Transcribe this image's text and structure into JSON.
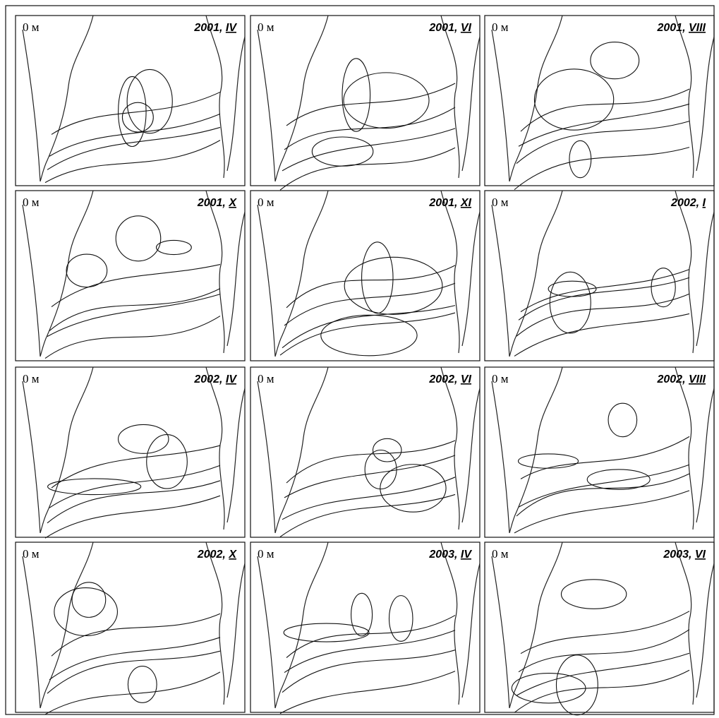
{
  "panels": [
    {
      "depth": "0 м",
      "year": "2001,",
      "month": "IV"
    },
    {
      "depth": "0 м",
      "year": "2001,",
      "month": "VI"
    },
    {
      "depth": "0 м",
      "year": "2001,",
      "month": "VIII"
    },
    {
      "depth": "0 м",
      "year": "2001,",
      "month": "X"
    },
    {
      "depth": "0 м",
      "year": "2001,",
      "month": "XI"
    },
    {
      "depth": "0 м",
      "year": "2002,",
      "month": "I"
    },
    {
      "depth": "0 м",
      "year": "2002,",
      "month": "IV"
    },
    {
      "depth": "0 м",
      "year": "2002,",
      "month": "VI"
    },
    {
      "depth": "0 м",
      "year": "2002,",
      "month": "VIII"
    },
    {
      "depth": "0 м",
      "year": "2002,",
      "month": "X"
    },
    {
      "depth": "0 м",
      "year": "2003,",
      "month": "IV"
    },
    {
      "depth": "0 м",
      "year": "2003,",
      "month": "VI"
    }
  ]
}
